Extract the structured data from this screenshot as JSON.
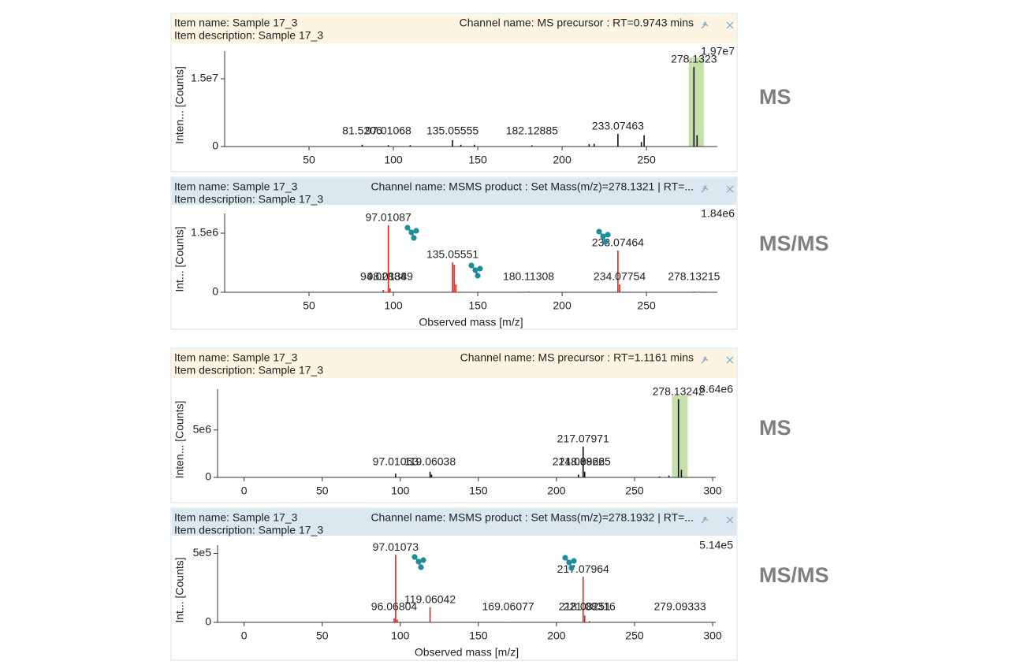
{
  "chart_data": [
    {
      "type": "stick",
      "tag": "MS",
      "item_name": "Item name: Sample 17_3",
      "item_description": "Item description: Sample 17_3",
      "channel_name": "Channel name: MS precursor : RT=0.9743 mins",
      "y_label": "Inten... [Counts]",
      "header_color": "#fdf5e2",
      "color": "#111111",
      "highlight": [
        275,
        284
      ],
      "highlight_color": "#c5e0a8",
      "xlim": [
        0,
        292
      ],
      "xticks": [
        50,
        100,
        150,
        200,
        250
      ],
      "ylim": [
        0,
        19700000
      ],
      "ymax_label": "1.97e7",
      "yticks": [
        0,
        {
          "value": 15000000,
          "label": "1.5e7"
        }
      ],
      "peaks": {
        "x": [
          81.5206,
          97.01068,
          135.05555,
          182.12885,
          233.07463,
          278.1323
        ],
        "values": [
          400000,
          300000,
          1400000,
          250000,
          2800000,
          17600000
        ]
      },
      "minor": {
        "x": [
          110,
          140,
          148,
          216,
          219,
          247,
          248.6,
          280
        ],
        "values": [
          300000,
          400000,
          400000,
          500000,
          600000,
          1000000,
          2500000,
          2500000
        ]
      }
    },
    {
      "type": "stick",
      "tag": "MS/MS",
      "item_name": "Item name: Sample 17_3",
      "item_description": "Item description: Sample 17_3",
      "channel_name": "Channel name: MSMS product : Set Mass(m/z)=278.1321 | RT=...",
      "y_label": "Int... [Counts]",
      "x_label": "Observed mass [m/z]",
      "header_color": "#dce8ef",
      "color": "#d9261c",
      "xlim": [
        0,
        292
      ],
      "xticks": [
        50,
        100,
        150,
        200,
        250
      ],
      "ylim": [
        0,
        1840000
      ],
      "ymax_label": "1.84e6",
      "yticks": [
        0,
        {
          "value": 1500000,
          "label": "1.5e6"
        }
      ],
      "peaks": {
        "x": [
          94.02884,
          97.01087,
          98.01389,
          135.05551,
          180.11308,
          233.07464,
          234.07754,
          278.13215
        ],
        "values": [
          60000,
          1700000,
          100000,
          760000,
          20000,
          1060000,
          200000,
          20000
        ]
      },
      "minor": {
        "x": [
          136,
          137
        ],
        "values": [
          700000,
          200000
        ]
      }
    },
    {
      "type": "stick",
      "tag": "MS",
      "item_name": "Item name: Sample 17_3",
      "item_description": "Item description: Sample 17_3",
      "channel_name": "Channel name: MS precursor : RT=1.1161 mins",
      "y_label": "Inten... [Counts]",
      "header_color": "#fdf5e2",
      "color": "#111111",
      "highlight": [
        274,
        284
      ],
      "highlight_color": "#c5e0a8",
      "xlim": [
        -17,
        302
      ],
      "xticks": [
        0,
        50,
        100,
        150,
        200,
        250,
        300
      ],
      "ylim": [
        0,
        8640000
      ],
      "ymax_label": "8.64e6",
      "yticks": [
        0,
        {
          "value": 5000000,
          "label": "5e6"
        }
      ],
      "peaks": {
        "x": [
          97.01063,
          119.06038,
          214.08962,
          217.07971,
          218.08265,
          278.13242
        ],
        "values": [
          400000,
          600000,
          300000,
          3250000,
          600000,
          8250000
        ]
      },
      "minor": {
        "x": [
          120,
          266,
          272,
          280
        ],
        "values": [
          300000,
          100000,
          200000,
          800000
        ]
      }
    },
    {
      "type": "stick",
      "tag": "MS/MS",
      "item_name": "Item name: Sample 17_3",
      "item_description": "Item description: Sample 17_3",
      "channel_name": "Channel name: MSMS product : Set Mass(m/z)=278.1932 | RT=...",
      "y_label": "Int... [Counts]",
      "x_label": "Observed mass [m/z]",
      "header_color": "#dce8ef",
      "color": "#d9261c",
      "xlim": [
        -17,
        302
      ],
      "xticks": [
        0,
        50,
        100,
        150,
        200,
        250,
        300
      ],
      "ylim": [
        0,
        514000
      ],
      "ymax_label": "5.14e5",
      "yticks": [
        0,
        {
          "value": 500000,
          "label": "5e5"
        }
      ],
      "peaks": {
        "x": [
          96.06804,
          97.01073,
          119.06042,
          169.06077,
          217.07964,
          218.08251,
          221.08316,
          279.09333
        ],
        "values": [
          30000,
          490000,
          110000,
          2000,
          330000,
          50000,
          10000,
          1000
        ]
      },
      "minor": {
        "x": [
          98
        ],
        "values": [
          20000
        ]
      }
    }
  ]
}
